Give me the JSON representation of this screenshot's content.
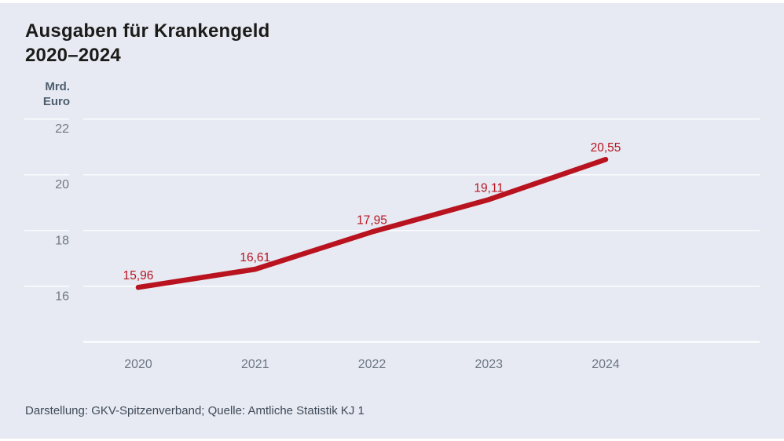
{
  "page": {
    "title_line1": "Ausgaben für Krankengeld",
    "title_line2": "2020–2024",
    "footer": "Darstellung: GKV-Spitzenverband; Quelle: Amtliche Statistik KJ 1"
  },
  "axis_unit": {
    "line1": "Mrd.",
    "line2": "Euro"
  },
  "colors": {
    "background": "#e7eaf2",
    "line": "#b8131f",
    "grid": "#ffffff",
    "title": "#1b1b19",
    "axis_label": "#6e7884",
    "unit_label": "#4c5d6e",
    "footer": "#3e4a58"
  },
  "chart_data": {
    "type": "line",
    "title": "Ausgaben für Krankengeld 2020–2024",
    "xlabel": "",
    "ylabel": "Mrd. Euro",
    "categories": [
      "2020",
      "2021",
      "2022",
      "2023",
      "2024"
    ],
    "values": [
      15.96,
      16.61,
      17.95,
      19.11,
      20.55
    ],
    "value_labels": [
      "15,96",
      "16,61",
      "17,95",
      "19,11",
      "20,55"
    ],
    "y_ticks": [
      22,
      20,
      18,
      16
    ],
    "ylim": [
      14,
      22.4
    ],
    "grid": true,
    "legend": false
  }
}
